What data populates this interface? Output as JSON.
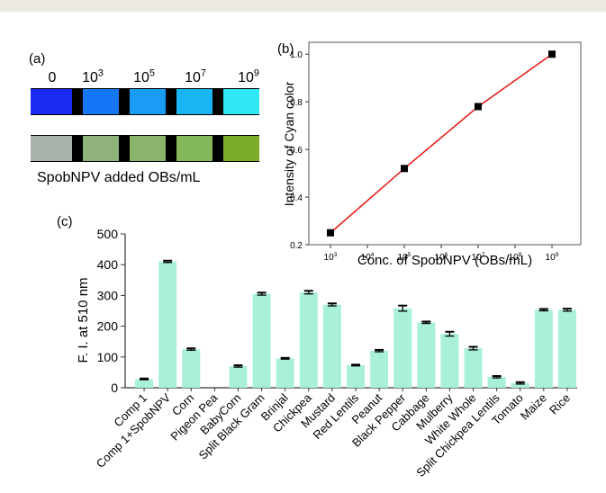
{
  "panel_a": {
    "label": "(a)",
    "concentrations": [
      {
        "base": "0",
        "exp": ""
      },
      {
        "base": "10",
        "exp": "3"
      },
      {
        "base": "10",
        "exp": "5"
      },
      {
        "base": "10",
        "exp": "7"
      },
      {
        "base": "10",
        "exp": "9"
      }
    ],
    "strip_top_colors": [
      "#1c2bf2",
      "#1677f6",
      "#1a9cf4",
      "#18b4f4",
      "#2fe8f4"
    ],
    "strip_bottom_colors": [
      "#a9b2ab",
      "#8fb27a",
      "#8ab36c",
      "#84b65c",
      "#7aac28"
    ],
    "caption": "SpobNPV added OBs/mL"
  },
  "chart_data": [
    {
      "panel_label": "(b)",
      "type": "line",
      "xscale": "log",
      "x": [
        1000,
        100000,
        10000000,
        1000000000
      ],
      "y": [
        0.25,
        0.52,
        0.78,
        1.0
      ],
      "xlabel": "Conc. of SpobNPV (OBs/mL)",
      "ylabel": "Intensity of Cyan color",
      "xlim": [
        1000,
        1000000000
      ],
      "ylim": [
        0.2,
        1.05
      ],
      "x_tick_labels": [
        {
          "base": "10",
          "exp": "3"
        },
        {
          "base": "10",
          "exp": "4"
        },
        {
          "base": "10",
          "exp": "5"
        },
        {
          "base": "10",
          "exp": "6"
        },
        {
          "base": "10",
          "exp": "7"
        },
        {
          "base": "10",
          "exp": "8"
        },
        {
          "base": "10",
          "exp": "9"
        }
      ],
      "y_tick_labels": [
        "0.2",
        "0.4",
        "0.6",
        "0.8",
        "1.0"
      ],
      "line_color": "#e8201a",
      "marker_color": "#000000",
      "grid": false
    },
    {
      "panel_label": "(c)",
      "type": "bar",
      "categories": [
        "Comp 1",
        "Comp 1+SpobNPV",
        "Corn",
        "Pigeon Pea",
        "BabyCorn",
        "Split Black Gram",
        "Brinjal",
        "Chickpea",
        "Mustard",
        "Red Lentils",
        "Peanut",
        "Black Pepper",
        "Cabbage",
        "Mulberry",
        "White Whole",
        "Split Chickpea Lentils",
        "Tomato",
        "Maize",
        "Rice"
      ],
      "values": [
        28,
        410,
        125,
        0,
        70,
        305,
        95,
        310,
        270,
        73,
        120,
        258,
        212,
        175,
        128,
        35,
        15,
        253,
        253
      ],
      "errors": [
        2,
        3,
        3,
        0,
        3,
        4,
        2,
        5,
        4,
        2,
        3,
        9,
        3,
        7,
        5,
        3,
        3,
        3,
        4
      ],
      "ylabel": "F. I. at 510 nm",
      "xlabel": "",
      "ylim": [
        0,
        500
      ],
      "y_tick_labels": [
        "0",
        "100",
        "200",
        "300",
        "400",
        "500"
      ],
      "bar_color": "#a8f0d8",
      "grid": false
    }
  ]
}
